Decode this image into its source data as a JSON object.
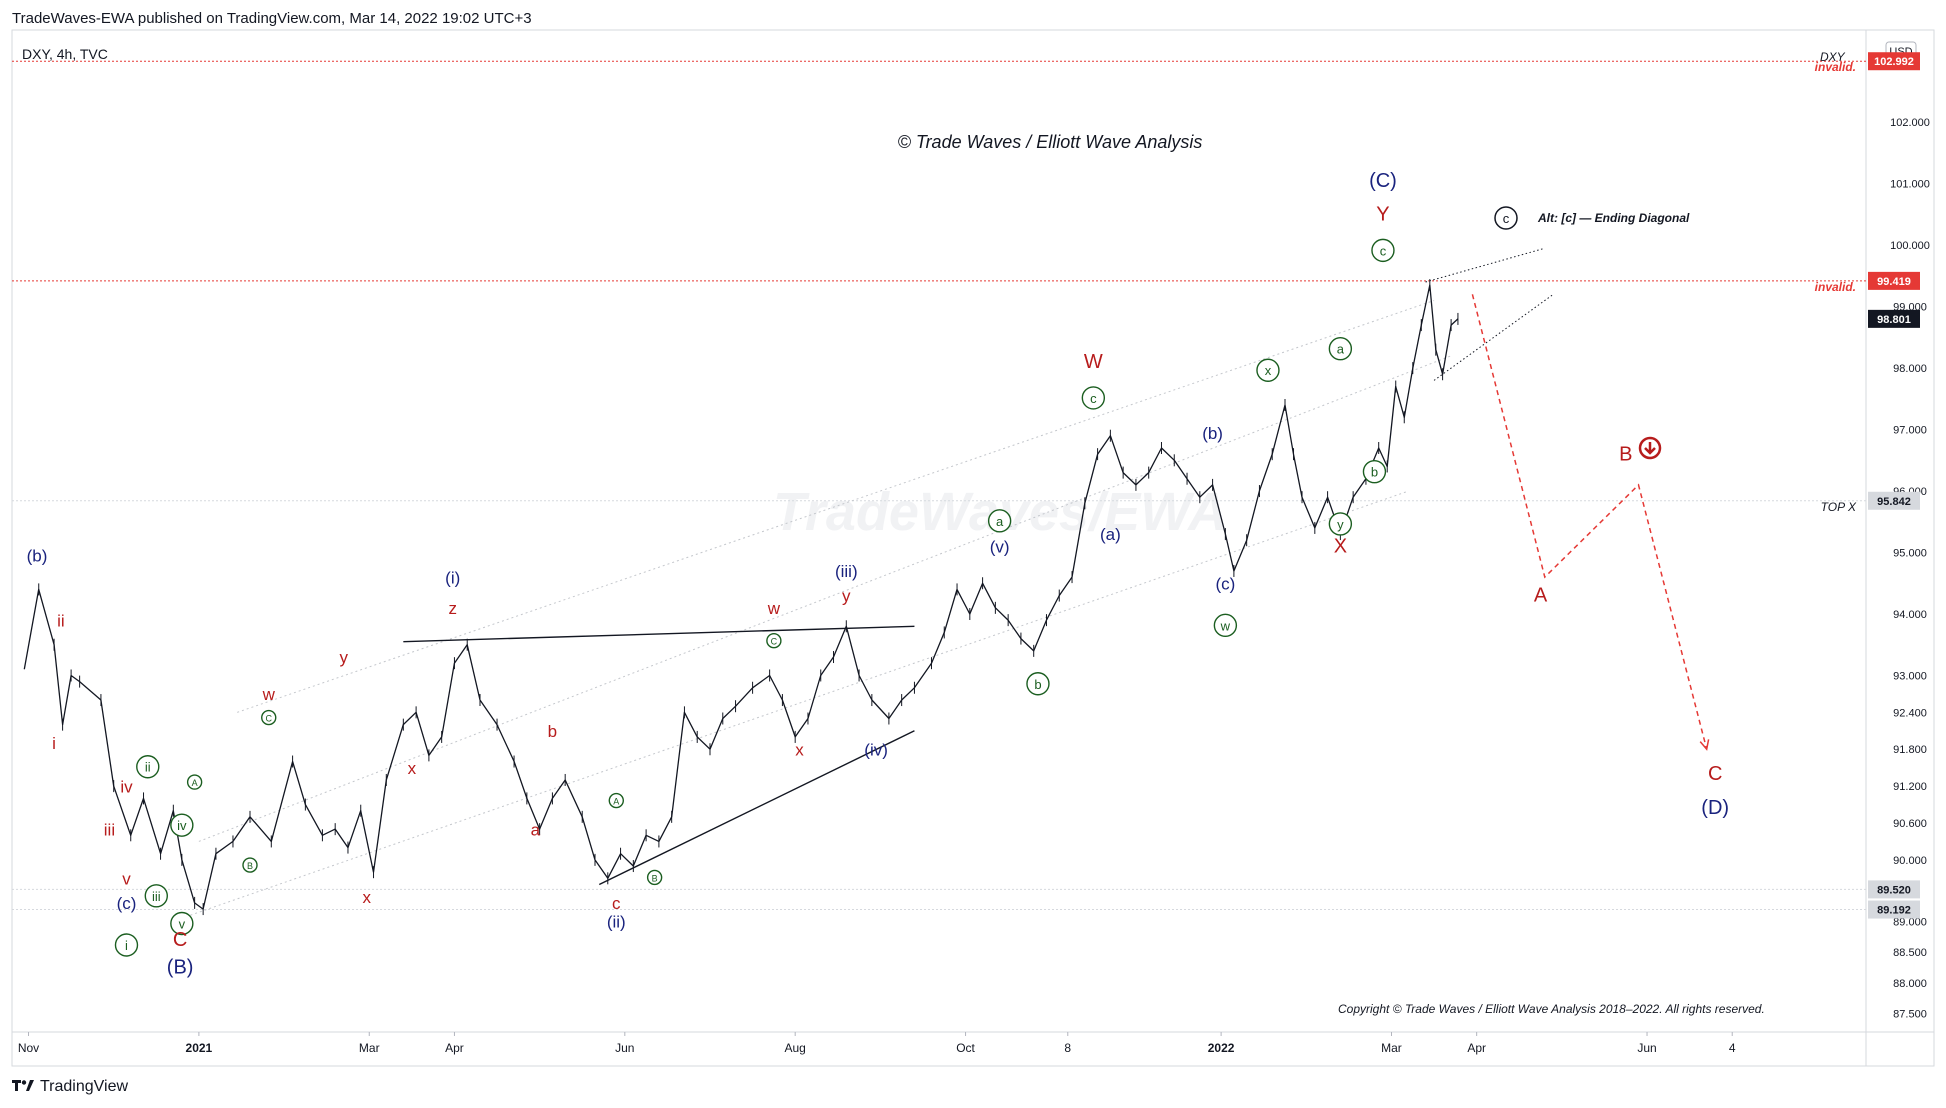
{
  "header": {
    "published": "TradeWaves-EWA published on TradingView.com, Mar 14, 2022 19:02 UTC+3"
  },
  "footer": {
    "brand": "TradingView",
    "logo": "tradingview-logo"
  },
  "chart_data": {
    "type": "line",
    "symbol": "DXY, 4h, TVC",
    "symbol_short": "DXY",
    "currency": "USD",
    "watermark": "TradeWaves/EWA",
    "title": "© Trade Waves / Elliott Wave Analysis",
    "copyright": "Copyright © Trade Waves / Elliott Wave Analysis 2018–2022. All rights reserved.",
    "alt_note": {
      "circle": "c",
      "text": "Alt: [c] — Ending Diagonal"
    },
    "ylim": [
      87.2,
      103.5
    ],
    "y_ticks": [
      {
        "label": "102.000",
        "value": 102.0
      },
      {
        "label": "101.000",
        "value": 101.0
      },
      {
        "label": "100.000",
        "value": 100.0
      },
      {
        "label": "99.000",
        "value": 99.0
      },
      {
        "label": "98.000",
        "value": 98.0
      },
      {
        "label": "97.000",
        "value": 97.0
      },
      {
        "label": "96.000",
        "value": 96.0
      },
      {
        "label": "95.000",
        "value": 95.0
      },
      {
        "label": "94.000",
        "value": 94.0
      },
      {
        "label": "93.000",
        "value": 93.0
      },
      {
        "label": "92.400",
        "value": 92.4
      },
      {
        "label": "91.800",
        "value": 91.8
      },
      {
        "label": "91.200",
        "value": 91.2
      },
      {
        "label": "90.600",
        "value": 90.6
      },
      {
        "label": "90.000",
        "value": 90.0
      },
      {
        "label": "89.000",
        "value": 89.0
      },
      {
        "label": "88.500",
        "value": 88.5
      },
      {
        "label": "88.000",
        "value": 88.0
      },
      {
        "label": "87.500",
        "value": 87.5
      }
    ],
    "price_tags": [
      {
        "label": "102.992",
        "value": 102.992,
        "color": "#e53935",
        "note": "invalid."
      },
      {
        "label": "99.419",
        "value": 99.419,
        "color": "#e53935",
        "note": "invalid."
      },
      {
        "label": "98.801",
        "value": 98.801,
        "color": "#131722",
        "note": ""
      },
      {
        "label": "95.842",
        "value": 95.842,
        "color": "#d6d9de",
        "note": "TOP X"
      },
      {
        "label": "89.520",
        "value": 89.52,
        "color": "#d6d9de",
        "note": ""
      },
      {
        "label": "89.192",
        "value": 89.192,
        "color": "#d6d9de",
        "note": ""
      }
    ],
    "x_ticks": [
      {
        "label": "Nov",
        "t": 0.0
      },
      {
        "label": "2021",
        "t": 2.0
      },
      {
        "label": "Mar",
        "t": 4.0
      },
      {
        "label": "Apr",
        "t": 5.0
      },
      {
        "label": "Jun",
        "t": 7.0
      },
      {
        "label": "Aug",
        "t": 9.0
      },
      {
        "label": "Oct",
        "t": 11.0
      },
      {
        "label": "8",
        "t": 12.2
      },
      {
        "label": "2022",
        "t": 14.0
      },
      {
        "label": "Mar",
        "t": 16.0
      },
      {
        "label": "Apr",
        "t": 17.0
      },
      {
        "label": "Jun",
        "t": 19.0
      },
      {
        "label": "4",
        "t": 20.0
      }
    ],
    "xlim": [
      -0.1,
      21.5
    ],
    "series": [
      {
        "values": [
          [
            -0.05,
            93.1
          ],
          [
            0.12,
            94.4
          ],
          [
            0.3,
            93.5
          ],
          [
            0.4,
            92.2
          ],
          [
            0.5,
            93.0
          ],
          [
            0.6,
            92.9
          ],
          [
            0.85,
            92.6
          ],
          [
            1.0,
            91.2
          ],
          [
            1.2,
            90.4
          ],
          [
            1.35,
            91.0
          ],
          [
            1.55,
            90.1
          ],
          [
            1.7,
            90.8
          ],
          [
            1.8,
            90.0
          ],
          [
            1.95,
            89.3
          ],
          [
            2.05,
            89.2
          ],
          [
            2.2,
            90.1
          ],
          [
            2.4,
            90.3
          ],
          [
            2.6,
            90.7
          ],
          [
            2.85,
            90.3
          ],
          [
            3.1,
            91.6
          ],
          [
            3.25,
            90.9
          ],
          [
            3.45,
            90.4
          ],
          [
            3.6,
            90.5
          ],
          [
            3.75,
            90.2
          ],
          [
            3.9,
            90.8
          ],
          [
            4.05,
            89.8
          ],
          [
            4.2,
            91.3
          ],
          [
            4.4,
            92.2
          ],
          [
            4.55,
            92.4
          ],
          [
            4.7,
            91.7
          ],
          [
            4.85,
            92.0
          ],
          [
            5.0,
            93.2
          ],
          [
            5.15,
            93.5
          ],
          [
            5.3,
            92.6
          ],
          [
            5.5,
            92.2
          ],
          [
            5.7,
            91.6
          ],
          [
            5.85,
            91.0
          ],
          [
            6.0,
            90.5
          ],
          [
            6.15,
            91.0
          ],
          [
            6.3,
            91.3
          ],
          [
            6.5,
            90.7
          ],
          [
            6.65,
            90.0
          ],
          [
            6.8,
            89.7
          ],
          [
            6.95,
            90.1
          ],
          [
            7.1,
            89.9
          ],
          [
            7.25,
            90.4
          ],
          [
            7.4,
            90.3
          ],
          [
            7.55,
            90.7
          ],
          [
            7.7,
            92.4
          ],
          [
            7.85,
            92.0
          ],
          [
            8.0,
            91.8
          ],
          [
            8.15,
            92.3
          ],
          [
            8.3,
            92.5
          ],
          [
            8.5,
            92.8
          ],
          [
            8.7,
            93.0
          ],
          [
            8.85,
            92.6
          ],
          [
            9.0,
            92.0
          ],
          [
            9.15,
            92.3
          ],
          [
            9.3,
            93.0
          ],
          [
            9.45,
            93.3
          ],
          [
            9.6,
            93.8
          ],
          [
            9.75,
            93.0
          ],
          [
            9.9,
            92.6
          ],
          [
            10.1,
            92.3
          ],
          [
            10.25,
            92.6
          ],
          [
            10.4,
            92.8
          ],
          [
            10.6,
            93.2
          ],
          [
            10.75,
            93.7
          ],
          [
            10.9,
            94.4
          ],
          [
            11.05,
            94.0
          ],
          [
            11.2,
            94.5
          ],
          [
            11.35,
            94.1
          ],
          [
            11.5,
            93.9
          ],
          [
            11.65,
            93.6
          ],
          [
            11.8,
            93.4
          ],
          [
            11.95,
            93.9
          ],
          [
            12.1,
            94.3
          ],
          [
            12.25,
            94.6
          ],
          [
            12.4,
            95.8
          ],
          [
            12.55,
            96.6
          ],
          [
            12.7,
            96.9
          ],
          [
            12.85,
            96.3
          ],
          [
            13.0,
            96.1
          ],
          [
            13.15,
            96.3
          ],
          [
            13.3,
            96.7
          ],
          [
            13.45,
            96.5
          ],
          [
            13.6,
            96.2
          ],
          [
            13.75,
            95.9
          ],
          [
            13.9,
            96.1
          ],
          [
            14.05,
            95.3
          ],
          [
            14.15,
            94.7
          ],
          [
            14.3,
            95.2
          ],
          [
            14.45,
            96.0
          ],
          [
            14.6,
            96.6
          ],
          [
            14.75,
            97.4
          ],
          [
            14.85,
            96.6
          ],
          [
            14.95,
            95.9
          ],
          [
            15.1,
            95.4
          ],
          [
            15.25,
            95.9
          ],
          [
            15.4,
            95.3
          ],
          [
            15.55,
            95.9
          ],
          [
            15.7,
            96.2
          ],
          [
            15.85,
            96.7
          ],
          [
            15.95,
            96.4
          ],
          [
            16.05,
            97.7
          ],
          [
            16.15,
            97.2
          ],
          [
            16.25,
            98.0
          ],
          [
            16.35,
            98.7
          ],
          [
            16.45,
            99.35
          ],
          [
            16.52,
            98.3
          ],
          [
            16.6,
            97.9
          ],
          [
            16.7,
            98.7
          ],
          [
            16.78,
            98.8
          ]
        ]
      }
    ],
    "channel_lines": [
      {
        "from": [
          2.45,
          92.4
        ],
        "to": [
          16.5,
          99.1
        ]
      },
      {
        "from": [
          2.0,
          90.3
        ],
        "to": [
          16.7,
          98.2
        ]
      },
      {
        "from": [
          1.9,
          89.1
        ],
        "to": [
          16.2,
          96.0
        ]
      }
    ],
    "trend_lines": [
      {
        "from": [
          4.4,
          93.55
        ],
        "to": [
          10.4,
          93.8
        ]
      },
      {
        "from": [
          6.7,
          89.6
        ],
        "to": [
          10.4,
          92.1
        ]
      }
    ],
    "diagonal_lines": [
      {
        "from": [
          16.4,
          99.4
        ],
        "to": [
          17.8,
          99.95
        ]
      },
      {
        "from": [
          16.5,
          97.8
        ],
        "to": [
          17.9,
          99.2
        ]
      }
    ],
    "projection": {
      "points": [
        [
          16.95,
          99.2
        ],
        [
          17.8,
          94.6
        ],
        [
          18.9,
          96.1
        ],
        [
          19.7,
          91.8
        ]
      ],
      "color": "#e53935"
    },
    "labels": [
      {
        "text": "(b)",
        "t": 0.1,
        "y": 94.85,
        "color": "#1a237e",
        "circled": false
      },
      {
        "text": "ii",
        "t": 0.38,
        "y": 93.8,
        "color": "#b71c1c",
        "circled": false
      },
      {
        "text": "i",
        "t": 0.3,
        "y": 91.8,
        "color": "#b71c1c",
        "circled": false
      },
      {
        "text": "iv",
        "t": 1.15,
        "y": 91.1,
        "color": "#b71c1c",
        "circled": false
      },
      {
        "text": "iii",
        "t": 0.95,
        "y": 90.4,
        "color": "#b71c1c",
        "circled": false
      },
      {
        "text": "v",
        "t": 1.15,
        "y": 89.6,
        "color": "#b71c1c",
        "circled": false
      },
      {
        "text": "(c)",
        "t": 1.15,
        "y": 89.2,
        "color": "#1a237e",
        "circled": false
      },
      {
        "text": "i",
        "t": 1.15,
        "y": 88.55,
        "color": "#1b5e20",
        "circled": true
      },
      {
        "text": "ii",
        "t": 1.4,
        "y": 91.45,
        "color": "#1b5e20",
        "circled": true
      },
      {
        "text": "iv",
        "t": 1.8,
        "y": 90.5,
        "color": "#1b5e20",
        "circled": true
      },
      {
        "text": "iii",
        "t": 1.5,
        "y": 89.35,
        "color": "#1b5e20",
        "circled": true
      },
      {
        "text": "v",
        "t": 1.8,
        "y": 88.9,
        "color": "#1b5e20",
        "circled": true
      },
      {
        "text": "C",
        "t": 1.78,
        "y": 88.6,
        "color": "#b71c1c",
        "circled": false
      },
      {
        "text": "(B)",
        "t": 1.78,
        "y": 88.15,
        "color": "#1a237e",
        "circled": false
      },
      {
        "text": "A",
        "t": 1.95,
        "y": 91.2,
        "color": "#1b5e20",
        "circled": true
      },
      {
        "text": "B",
        "t": 2.6,
        "y": 89.85,
        "color": "#1b5e20",
        "circled": true
      },
      {
        "text": "w",
        "t": 2.82,
        "y": 92.6,
        "color": "#b71c1c",
        "circled": false
      },
      {
        "text": "C",
        "t": 2.82,
        "y": 92.25,
        "color": "#1b5e20",
        "circled": true
      },
      {
        "text": "x",
        "t": 3.97,
        "y": 89.3,
        "color": "#b71c1c",
        "circled": false
      },
      {
        "text": "y",
        "t": 3.7,
        "y": 93.2,
        "color": "#b71c1c",
        "circled": false
      },
      {
        "text": "x",
        "t": 4.5,
        "y": 91.4,
        "color": "#b71c1c",
        "circled": false
      },
      {
        "text": "(i)",
        "t": 4.98,
        "y": 94.5,
        "color": "#1a237e",
        "circled": false
      },
      {
        "text": "z",
        "t": 4.98,
        "y": 94.0,
        "color": "#b71c1c",
        "circled": false
      },
      {
        "text": "b",
        "t": 6.15,
        "y": 92.0,
        "color": "#b71c1c",
        "circled": false
      },
      {
        "text": "a",
        "t": 5.95,
        "y": 90.4,
        "color": "#b71c1c",
        "circled": false
      },
      {
        "text": "A",
        "t": 6.9,
        "y": 90.9,
        "color": "#1b5e20",
        "circled": true
      },
      {
        "text": "B",
        "t": 7.35,
        "y": 89.65,
        "color": "#1b5e20",
        "circled": true
      },
      {
        "text": "c",
        "t": 6.9,
        "y": 89.2,
        "color": "#b71c1c",
        "circled": false
      },
      {
        "text": "(ii)",
        "t": 6.9,
        "y": 88.9,
        "color": "#1a237e",
        "circled": false
      },
      {
        "text": "w",
        "t": 8.75,
        "y": 94.0,
        "color": "#b71c1c",
        "circled": false
      },
      {
        "text": "C",
        "t": 8.75,
        "y": 93.5,
        "color": "#1b5e20",
        "circled": true
      },
      {
        "text": "x",
        "t": 9.05,
        "y": 91.7,
        "color": "#b71c1c",
        "circled": false
      },
      {
        "text": "(iii)",
        "t": 9.6,
        "y": 94.6,
        "color": "#1a237e",
        "circled": false
      },
      {
        "text": "y",
        "t": 9.6,
        "y": 94.2,
        "color": "#b71c1c",
        "circled": false
      },
      {
        "text": "(iv)",
        "t": 9.95,
        "y": 91.7,
        "color": "#1a237e",
        "circled": false
      },
      {
        "text": "a",
        "t": 11.4,
        "y": 95.45,
        "color": "#1b5e20",
        "circled": true
      },
      {
        "text": "(v)",
        "t": 11.4,
        "y": 95.0,
        "color": "#1a237e",
        "circled": false
      },
      {
        "text": "b",
        "t": 11.85,
        "y": 92.8,
        "color": "#1b5e20",
        "circled": true
      },
      {
        "text": "W",
        "t": 12.5,
        "y": 98.0,
        "color": "#b71c1c",
        "circled": false
      },
      {
        "text": "c",
        "t": 12.5,
        "y": 97.45,
        "color": "#1b5e20",
        "circled": true
      },
      {
        "text": "(a)",
        "t": 12.7,
        "y": 95.2,
        "color": "#1a237e",
        "circled": false
      },
      {
        "text": "(b)",
        "t": 13.9,
        "y": 96.85,
        "color": "#1a237e",
        "circled": false
      },
      {
        "text": "(c)",
        "t": 14.05,
        "y": 94.4,
        "color": "#1a237e",
        "circled": false
      },
      {
        "text": "w",
        "t": 14.05,
        "y": 93.75,
        "color": "#1b5e20",
        "circled": true
      },
      {
        "text": "x",
        "t": 14.55,
        "y": 97.9,
        "color": "#1b5e20",
        "circled": true
      },
      {
        "text": "a",
        "t": 15.4,
        "y": 98.25,
        "color": "#1b5e20",
        "circled": true
      },
      {
        "text": "b",
        "t": 15.8,
        "y": 96.25,
        "color": "#1b5e20",
        "circled": true
      },
      {
        "text": "y",
        "t": 15.4,
        "y": 95.4,
        "color": "#1b5e20",
        "circled": true
      },
      {
        "text": "X",
        "t": 15.4,
        "y": 95.0,
        "color": "#b71c1c",
        "circled": false
      },
      {
        "text": "(C)",
        "t": 15.9,
        "y": 100.95,
        "color": "#1a237e",
        "circled": false
      },
      {
        "text": "Y",
        "t": 15.9,
        "y": 100.4,
        "color": "#b71c1c",
        "circled": false
      },
      {
        "text": "c",
        "t": 15.9,
        "y": 99.85,
        "color": "#1b5e20",
        "circled": true
      },
      {
        "text": "A",
        "t": 17.75,
        "y": 94.2,
        "color": "#b71c1c",
        "circled": false
      },
      {
        "text": "B",
        "t": 18.75,
        "y": 96.5,
        "color": "#b71c1c",
        "circled": false
      },
      {
        "text": "C",
        "t": 19.8,
        "y": 91.3,
        "color": "#b71c1c",
        "circled": false
      },
      {
        "text": "(D)",
        "t": 19.8,
        "y": 90.75,
        "color": "#1a237e",
        "circled": false
      }
    ],
    "colors": {
      "price": "#131722",
      "projection": "#e53935",
      "invalid": "#e53935"
    }
  }
}
